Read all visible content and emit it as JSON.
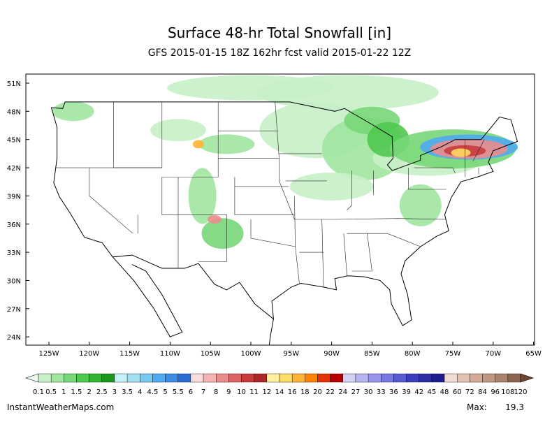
{
  "header": {
    "title": "Surface 48-hr Total Snowfall [in]",
    "subtitle": "GFS 2015-01-15 18Z 162hr fcst valid 2015-01-22 12Z"
  },
  "map": {
    "lat_labels": [
      "51N",
      "48N",
      "45N",
      "42N",
      "39N",
      "36N",
      "33N",
      "30N",
      "27N",
      "24N"
    ],
    "lon_labels": [
      "125W",
      "120W",
      "115W",
      "110W",
      "105W",
      "100W",
      "95W",
      "90W",
      "85W",
      "80W",
      "75W",
      "70W",
      "65W"
    ]
  },
  "colorbar": {
    "labels": [
      "0.1",
      "0.5",
      "1",
      "1.5",
      "2",
      "2.5",
      "3",
      "3.5",
      "4",
      "4.5",
      "5",
      "5.5",
      "6",
      "7",
      "8",
      "9",
      "10",
      "11",
      "12",
      "14",
      "16",
      "18",
      "20",
      "22",
      "24",
      "27",
      "30",
      "33",
      "36",
      "39",
      "42",
      "45",
      "48",
      "60",
      "72",
      "84",
      "96",
      "108",
      "120"
    ],
    "colors": [
      "#c8f0c8",
      "#a0e6a0",
      "#78d778",
      "#50c850",
      "#32b432",
      "#1e961e",
      "#c8f0f8",
      "#a0e0f0",
      "#78c8f0",
      "#50aaf0",
      "#3c8ce6",
      "#2a6ed2",
      "#fadcdc",
      "#f5b4b4",
      "#eb8c8c",
      "#dc6464",
      "#c83c3c",
      "#aa2828",
      "#fff0a0",
      "#ffdc64",
      "#ffb432",
      "#ff8200",
      "#e63200",
      "#b40000",
      "#d2d2f5",
      "#b4b4f0",
      "#9696eb",
      "#7878e1",
      "#5a5ad2",
      "#3c3cbe",
      "#2d2da5",
      "#1e1e8c",
      "#f0dcd2",
      "#e1c3b4",
      "#d2aa96",
      "#be9682",
      "#aa826e",
      "#8c6450"
    ],
    "low_color": "#f0fbf0",
    "high_color": "#6e4632"
  },
  "footer": {
    "site": "InstantWeatherMaps.com",
    "max_label": "Max:",
    "max_value": "19.3"
  }
}
